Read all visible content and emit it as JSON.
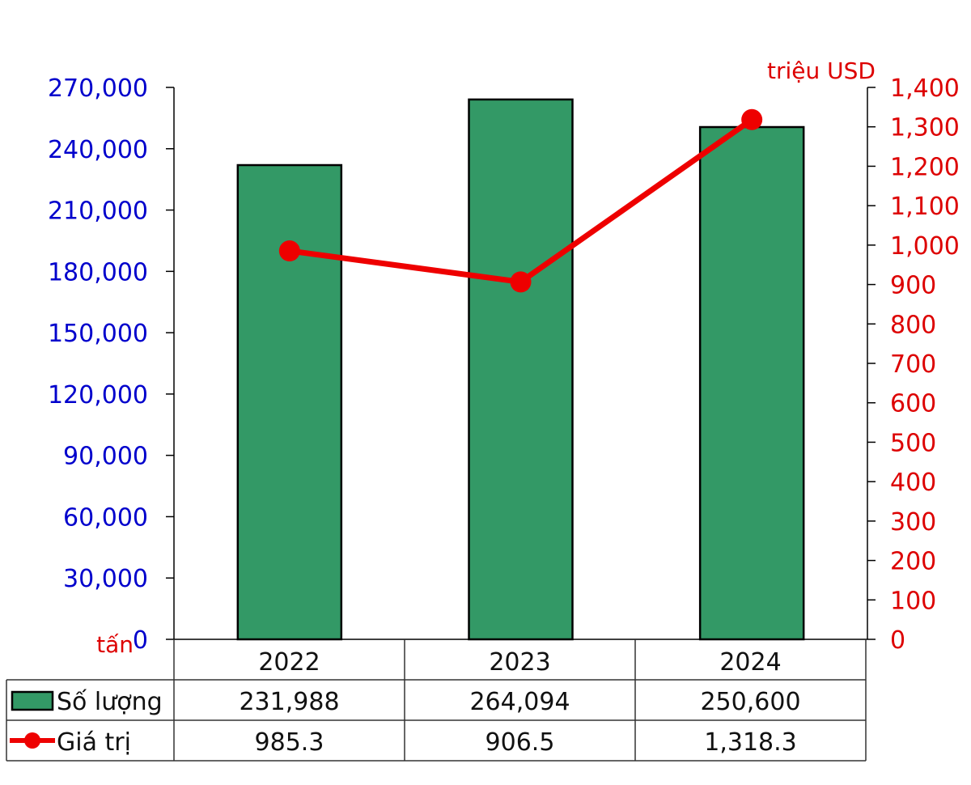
{
  "chart_data": {
    "type": "bar",
    "title": "",
    "categories": [
      "2022",
      "2023",
      "2024"
    ],
    "series": [
      {
        "name": "Số lượng",
        "kind": "bar",
        "axis": "left",
        "unit": "tấn",
        "color": "#339966",
        "values": [
          231988,
          264094,
          250600
        ]
      },
      {
        "name": "Giá trị",
        "kind": "line",
        "axis": "right",
        "unit": "triệu USD",
        "color": "#ee0000",
        "values": [
          985.3,
          906.5,
          1318.3
        ]
      }
    ],
    "left_axis": {
      "label": "tấn",
      "ylim": [
        0,
        270000
      ],
      "ticks": [
        "0",
        "30,000",
        "60,000",
        "90,000",
        "120,000",
        "150,000",
        "180,000",
        "210,000",
        "240,000",
        "270,000"
      ],
      "color": "#0000cc"
    },
    "right_axis": {
      "label": "triệu USD",
      "ylim": [
        0,
        1400
      ],
      "ticks": [
        "0",
        "100",
        "200",
        "300",
        "400",
        "500",
        "600",
        "700",
        "800",
        "900",
        "1,000",
        "1,100",
        "1,200",
        "1,300",
        "1,400"
      ],
      "color": "#dd0000"
    },
    "grid": false,
    "legend_position": "data-table"
  },
  "table": {
    "headers": [
      "2022",
      "2023",
      "2024"
    ],
    "rows": [
      {
        "label": "Số lượng",
        "values": [
          "231,988",
          "264,094",
          "250,600"
        ]
      },
      {
        "label": "Giá trị",
        "values": [
          "985.3",
          "906.5",
          "1,318.3"
        ]
      }
    ]
  }
}
